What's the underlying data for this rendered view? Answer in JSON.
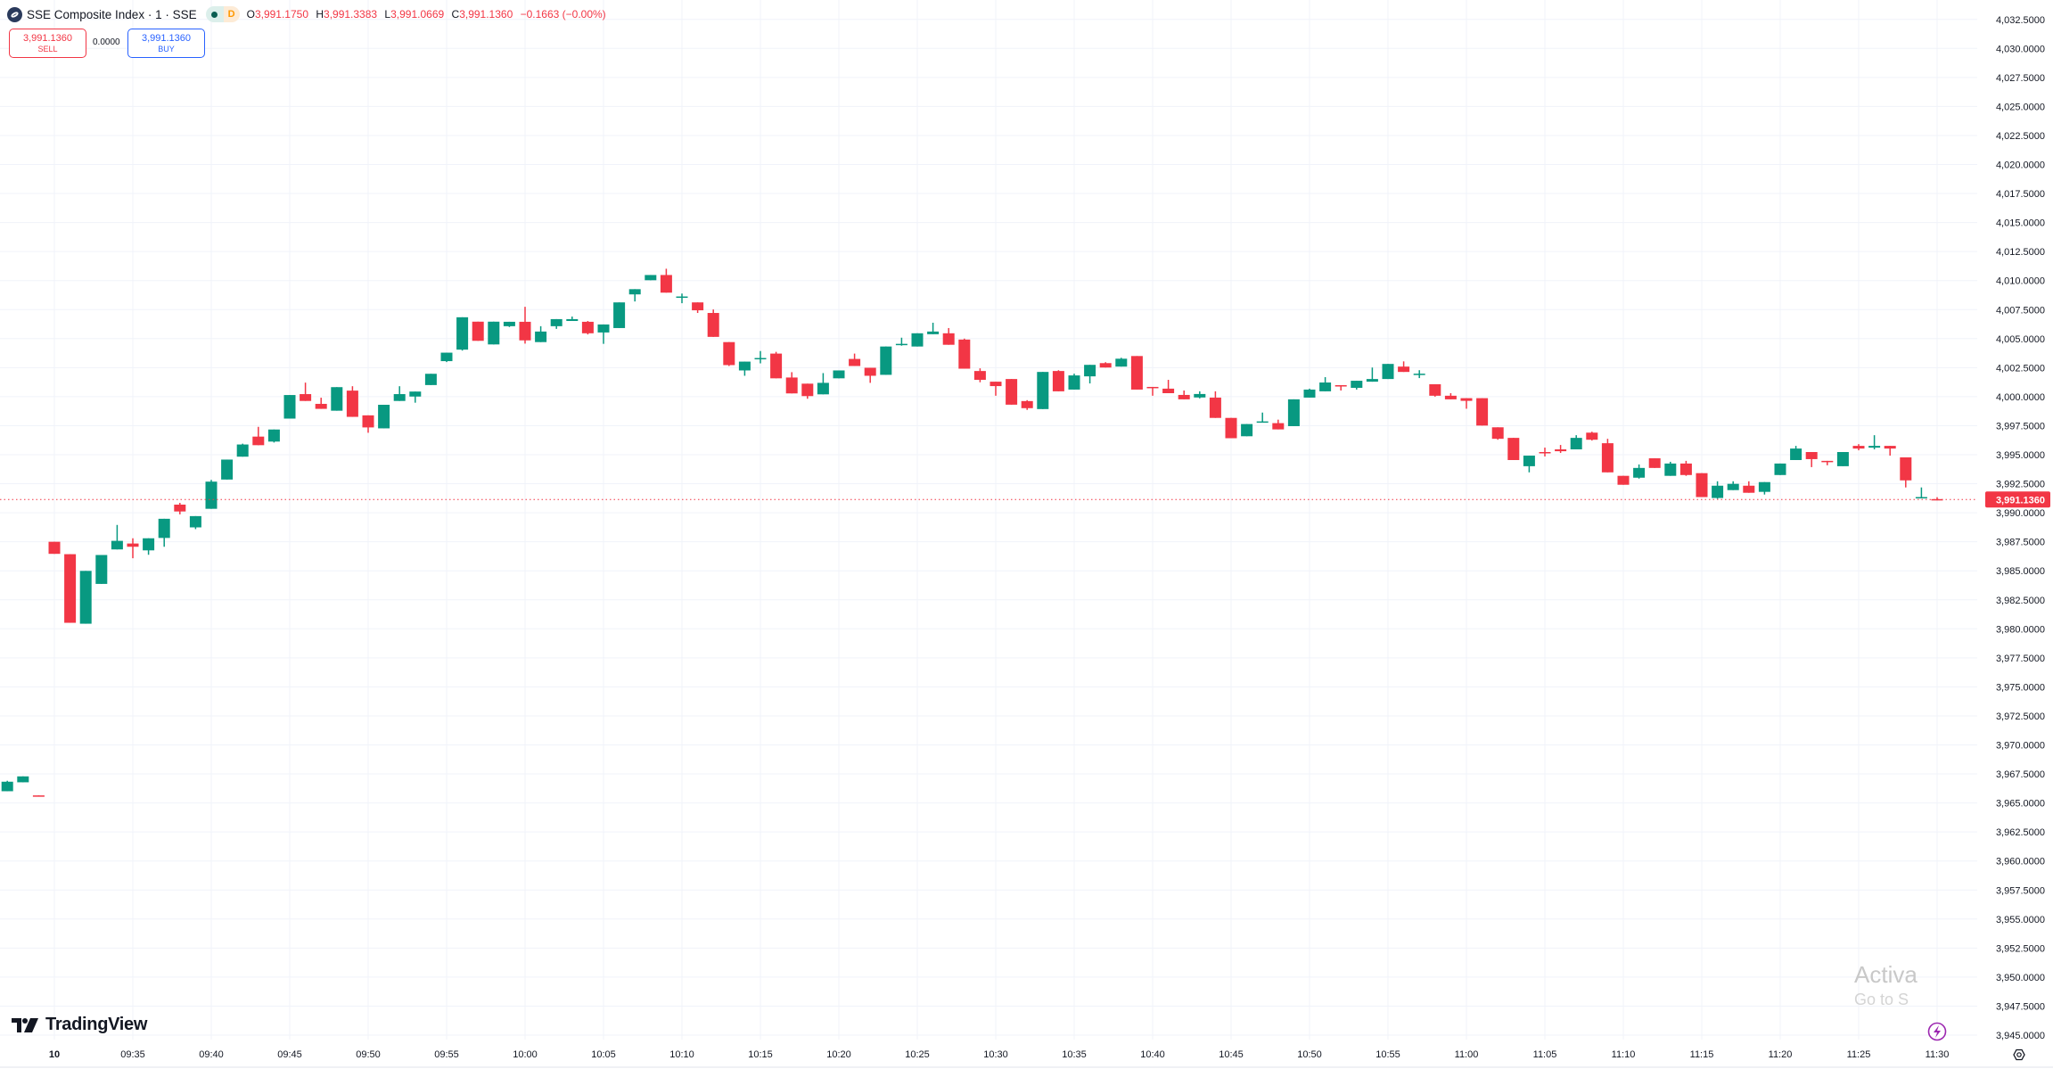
{
  "header": {
    "symbol_title": "SSE Composite Index · 1 · SSE",
    "status_dot_color": "#0b5e52",
    "delay_badge": "D",
    "ohlc": {
      "o_label": "O",
      "o": "3,991.1750",
      "h_label": "H",
      "h": "3,991.3383",
      "l_label": "L",
      "l": "3,991.0669",
      "c_label": "C",
      "c": "3,991.1360",
      "change": "−0.1663 (−0.00%)"
    }
  },
  "trade": {
    "sell_price": "3,991.1360",
    "sell_label": "SELL",
    "spread": "0.0000",
    "buy_price": "3,991.1360",
    "buy_label": "BUY"
  },
  "branding": {
    "logo_text": "TradingView"
  },
  "watermark": {
    "line1": "Activa",
    "line2": "Go to S"
  },
  "colors": {
    "up": "#089981",
    "down": "#f23645",
    "grid": "#f0f3fa",
    "accent_blue": "#2962ff",
    "alert_purple": "#9c27b0"
  },
  "icons": {
    "alert": "lightning-icon",
    "settings": "gear-icon"
  },
  "chart_data": {
    "type": "candlestick",
    "interval": "1",
    "last_price": 3991.136,
    "last_price_label": "3,991.1360",
    "ylim": [
      3945,
      4032.5
    ],
    "grid": true,
    "price_ticks": [
      "4,032.5000",
      "4,030.0000",
      "4,027.5000",
      "4,025.0000",
      "4,022.5000",
      "4,020.0000",
      "4,017.5000",
      "4,015.0000",
      "4,012.5000",
      "4,010.0000",
      "4,007.5000",
      "4,005.0000",
      "4,002.5000",
      "4,000.0000",
      "3,997.5000",
      "3,995.0000",
      "3,992.5000",
      "3,990.0000",
      "3,987.5000",
      "3,985.0000",
      "3,982.5000",
      "3,980.0000",
      "3,977.5000",
      "3,975.0000",
      "3,972.5000",
      "3,970.0000",
      "3,967.5000",
      "3,965.0000",
      "3,962.5000",
      "3,960.0000",
      "3,957.5000",
      "3,955.0000",
      "3,952.5000",
      "3,950.0000",
      "3,947.5000",
      "3,945.0000"
    ],
    "time_ticks": [
      "10",
      "09:35",
      "09:40",
      "09:45",
      "09:50",
      "09:55",
      "10:00",
      "10:05",
      "10:10",
      "10:15",
      "10:20",
      "10:25",
      "10:30",
      "10:35",
      "10:40",
      "10:45",
      "10:50",
      "10:55",
      "11:00",
      "11:05",
      "11:10",
      "11:15",
      "11:20",
      "11:25",
      "11:30"
    ],
    "fields": [
      "time",
      "open",
      "high",
      "low",
      "close"
    ],
    "prev_session_ohlc": [
      [
        3966.01,
        3966.91,
        3966.01,
        3966.83
      ],
      [
        3966.78,
        3967.29,
        3966.78,
        3967.29
      ],
      [
        3965.65,
        3965.65,
        3965.6,
        3965.6
      ]
    ],
    "ohlc": [
      [
        "09:30",
        3987.5,
        3987.5,
        3986.46,
        3986.46
      ],
      [
        "09:31",
        3986.43,
        3986.43,
        3980.52,
        3980.52
      ],
      [
        "09:32",
        3980.44,
        3984.99,
        3980.44,
        3984.99
      ],
      [
        "09:33",
        3983.87,
        3986.36,
        3983.87,
        3986.36
      ],
      [
        "09:34",
        3986.84,
        3988.95,
        3986.84,
        3987.58
      ],
      [
        "09:35",
        3987.35,
        3987.8,
        3986.08,
        3987.07
      ],
      [
        "09:36",
        3986.76,
        3987.8,
        3986.38,
        3987.8
      ],
      [
        "09:37",
        3987.83,
        3989.48,
        3987.07,
        3989.48
      ],
      [
        "09:38",
        3990.7,
        3990.85,
        3989.86,
        3990.11
      ],
      [
        "09:39",
        3988.74,
        3989.71,
        3988.59,
        3989.71
      ],
      [
        "09:40",
        3990.34,
        3992.83,
        3990.34,
        3992.68
      ],
      [
        "09:41",
        3992.86,
        3994.58,
        3992.86,
        3994.58
      ],
      [
        "09:42",
        3994.83,
        3995.95,
        3994.83,
        3995.88
      ],
      [
        "09:43",
        3996.56,
        3997.4,
        3995.82,
        3995.82
      ],
      [
        "09:44",
        3996.13,
        3997.17,
        3996.05,
        3997.17
      ],
      [
        "09:45",
        3998.11,
        4000.14,
        3998.11,
        4000.14
      ],
      [
        "09:46",
        4000.22,
        4001.21,
        3999.63,
        3999.63
      ],
      [
        "09:47",
        3999.38,
        3999.91,
        3998.95,
        3998.95
      ],
      [
        "09:48",
        3998.79,
        4000.82,
        3998.79,
        4000.82
      ],
      [
        "09:49",
        4000.52,
        4000.9,
        3998.26,
        3998.26
      ],
      [
        "09:50",
        3998.39,
        3998.39,
        3996.89,
        3997.35
      ],
      [
        "09:51",
        3997.27,
        3999.3,
        3997.27,
        3999.3
      ],
      [
        "09:52",
        3999.63,
        4000.9,
        3999.63,
        4000.22
      ],
      [
        "09:53",
        4000.01,
        4000.44,
        3999.48,
        4000.44
      ],
      [
        "09:54",
        4001.0,
        4001.97,
        4001.0,
        4001.97
      ],
      [
        "09:55",
        4003.06,
        4003.79,
        4002.98,
        4003.79
      ],
      [
        "09:56",
        4004.05,
        4006.84,
        4003.97,
        4006.84
      ],
      [
        "09:57",
        4006.46,
        4006.46,
        4004.81,
        4004.81
      ],
      [
        "09:58",
        4004.5,
        4006.46,
        4004.5,
        4006.46
      ],
      [
        "09:59",
        4006.07,
        4006.45,
        4006.0,
        4006.45
      ],
      [
        "10:00",
        4006.45,
        4007.74,
        4004.57,
        4004.85
      ],
      [
        "10:01",
        4004.7,
        4006.07,
        4004.7,
        4005.61
      ],
      [
        "10:02",
        4006.07,
        4006.68,
        4005.84,
        4006.68
      ],
      [
        "10:03",
        4006.52,
        4006.9,
        4006.52,
        4006.68
      ],
      [
        "10:04",
        4006.45,
        4006.52,
        4005.36,
        4005.46
      ],
      [
        "10:05",
        4005.53,
        4006.22,
        4004.55,
        4006.22
      ],
      [
        "10:06",
        4005.91,
        4008.12,
        4005.91,
        4008.12
      ],
      [
        "10:07",
        4008.81,
        4009.26,
        4008.2,
        4009.26
      ],
      [
        "10:08",
        4010.03,
        4010.48,
        4010.03,
        4010.48
      ],
      [
        "10:09",
        4010.48,
        4011.02,
        4008.96,
        4008.96
      ],
      [
        "10:10",
        4008.53,
        4008.88,
        4008.05,
        4008.63
      ],
      [
        "10:11",
        4008.12,
        4008.12,
        4007.21,
        4007.44
      ],
      [
        "10:12",
        4007.21,
        4007.51,
        4005.15,
        4005.15
      ],
      [
        "10:13",
        4004.7,
        4004.7,
        4002.64,
        4002.72
      ],
      [
        "10:14",
        4002.26,
        4003.02,
        4001.8,
        4003.02
      ],
      [
        "10:15",
        4003.3,
        4003.93,
        4002.87,
        4003.33
      ],
      [
        "10:16",
        4003.71,
        4003.86,
        4001.58,
        4001.58
      ],
      [
        "10:17",
        4001.65,
        4002.11,
        4000.28,
        4000.28
      ],
      [
        "10:18",
        4001.12,
        4001.12,
        3999.82,
        4000.05
      ],
      [
        "10:19",
        4000.2,
        4002.03,
        4000.2,
        4001.19
      ],
      [
        "10:20",
        4001.58,
        4002.26,
        4001.58,
        4002.26
      ],
      [
        "10:21",
        4003.25,
        4003.71,
        4002.64,
        4002.64
      ],
      [
        "10:22",
        4002.49,
        4002.49,
        4001.19,
        4001.8
      ],
      [
        "10:23",
        4001.88,
        4004.32,
        4001.88,
        4004.32
      ],
      [
        "10:24",
        4004.47,
        4005.08,
        4004.39,
        4004.55
      ],
      [
        "10:25",
        4004.32,
        4005.46,
        4004.32,
        4005.46
      ],
      [
        "10:26",
        4005.38,
        4006.37,
        4005.38,
        4005.61
      ],
      [
        "10:27",
        4005.46,
        4005.91,
        4004.47,
        4004.47
      ],
      [
        "10:28",
        4004.92,
        4005.0,
        4002.41,
        4002.41
      ],
      [
        "10:29",
        4002.21,
        4002.44,
        4001.24,
        4001.45
      ],
      [
        "10:30",
        4001.29,
        4001.29,
        4000.08,
        4000.91
      ],
      [
        "10:31",
        4001.52,
        4001.52,
        3999.31,
        3999.31
      ],
      [
        "10:32",
        3999.62,
        3999.7,
        3998.86,
        3999.01
      ],
      [
        "10:33",
        3998.93,
        4002.13,
        3998.93,
        4002.13
      ],
      [
        "10:34",
        4002.21,
        4002.28,
        4000.46,
        4000.46
      ],
      [
        "10:35",
        4000.61,
        4001.98,
        4000.61,
        4001.83
      ],
      [
        "10:36",
        4001.75,
        4002.74,
        4001.14,
        4002.74
      ],
      [
        "10:37",
        4002.89,
        4002.97,
        4002.51,
        4002.51
      ],
      [
        "10:38",
        4002.59,
        4003.35,
        4002.59,
        4003.27
      ],
      [
        "10:39",
        4003.5,
        4003.5,
        4000.61,
        4000.61
      ],
      [
        "10:40",
        4000.84,
        4000.84,
        4000.08,
        4000.79
      ],
      [
        "10:41",
        4000.69,
        4001.45,
        4000.3,
        4000.3
      ],
      [
        "10:42",
        4000.15,
        4000.53,
        3999.77,
        3999.77
      ],
      [
        "10:43",
        3999.93,
        4000.46,
        3999.85,
        4000.23
      ],
      [
        "10:44",
        3999.92,
        4000.46,
        3998.17,
        3998.17
      ],
      [
        "10:45",
        3998.17,
        3998.17,
        3996.42,
        3996.42
      ],
      [
        "10:46",
        3996.59,
        3997.64,
        3996.59,
        3997.64
      ],
      [
        "10:47",
        3997.79,
        3998.63,
        3997.79,
        3997.87
      ],
      [
        "10:48",
        3997.72,
        3998.02,
        3997.18,
        3997.18
      ],
      [
        "10:49",
        3997.46,
        3999.77,
        3997.46,
        3999.77
      ],
      [
        "10:50",
        3999.92,
        4000.69,
        3999.92,
        4000.61
      ],
      [
        "10:51",
        4000.46,
        4001.68,
        4000.46,
        4001.22
      ],
      [
        "10:52",
        4000.99,
        4000.99,
        4000.53,
        4000.91
      ],
      [
        "10:53",
        4000.76,
        4001.37,
        4000.61,
        4001.37
      ],
      [
        "10:54",
        4001.29,
        4002.51,
        4001.29,
        4001.52
      ],
      [
        "10:55",
        4001.52,
        4002.82,
        4001.52,
        4002.82
      ],
      [
        "10:56",
        4002.59,
        4003.04,
        4002.13,
        4002.13
      ],
      [
        "10:57",
        4001.9,
        4002.28,
        4001.6,
        4001.98
      ],
      [
        "10:58",
        4001.07,
        4001.07,
        4000.0,
        4000.08
      ],
      [
        "10:59",
        4000.08,
        4000.3,
        3999.77,
        3999.77
      ],
      [
        "11:00",
        3999.87,
        3999.87,
        3998.96,
        3999.64
      ],
      [
        "11:01",
        3999.87,
        3999.87,
        3997.51,
        3997.51
      ],
      [
        "11:02",
        3997.36,
        3997.36,
        3996.29,
        3996.37
      ],
      [
        "11:03",
        3996.45,
        3996.45,
        3994.54,
        3994.54
      ],
      [
        "11:04",
        3994.01,
        3994.92,
        3993.48,
        3994.92
      ],
      [
        "11:05",
        3995.23,
        3995.61,
        3994.85,
        3995.13
      ],
      [
        "11:06",
        3995.46,
        3995.84,
        3995.15,
        3995.3
      ],
      [
        "11:07",
        3995.46,
        3996.68,
        3995.46,
        3996.45
      ],
      [
        "11:08",
        3996.9,
        3996.98,
        3996.22,
        3996.29
      ],
      [
        "11:09",
        3995.99,
        3996.37,
        3993.48,
        3993.48
      ],
      [
        "11:10",
        3993.18,
        3993.18,
        3992.41,
        3992.41
      ],
      [
        "11:11",
        3993.02,
        3994.16,
        3992.94,
        3993.86
      ],
      [
        "11:12",
        3994.69,
        3994.69,
        3993.86,
        3993.86
      ],
      [
        "11:13",
        3993.18,
        3994.39,
        3993.18,
        3994.24
      ],
      [
        "11:14",
        3994.24,
        3994.47,
        3993.18,
        3993.25
      ],
      [
        "11:15",
        3993.41,
        3993.41,
        3991.35,
        3991.35
      ],
      [
        "11:16",
        3991.27,
        3992.71,
        3991.19,
        3992.33
      ],
      [
        "11:17",
        3991.95,
        3992.71,
        3991.95,
        3992.49
      ],
      [
        "11:18",
        3992.33,
        3992.71,
        3991.72,
        3991.72
      ],
      [
        "11:19",
        3991.8,
        3992.64,
        3991.57,
        3992.64
      ],
      [
        "11:20",
        3993.25,
        3994.24,
        3993.25,
        3994.24
      ],
      [
        "11:21",
        3994.54,
        3995.76,
        3994.54,
        3995.53
      ],
      [
        "11:22",
        3995.23,
        3995.23,
        3993.93,
        3994.62
      ],
      [
        "11:23",
        3994.47,
        3994.47,
        3994.09,
        3994.39
      ],
      [
        "11:24",
        3994.01,
        3995.23,
        3994.01,
        3995.23
      ],
      [
        "11:25",
        3995.76,
        3995.91,
        3995.38,
        3995.53
      ],
      [
        "11:26",
        3995.61,
        3996.68,
        3995.46,
        3995.76
      ],
      [
        "11:27",
        3995.76,
        3995.76,
        3994.92,
        3995.53
      ],
      [
        "11:28",
        3994.77,
        3994.77,
        3992.18,
        3992.79
      ],
      [
        "11:29",
        3991.27,
        3992.18,
        3991.27,
        3991.35
      ],
      [
        "11:30",
        3991.175,
        3991.3383,
        3991.0669,
        3991.136
      ]
    ]
  }
}
